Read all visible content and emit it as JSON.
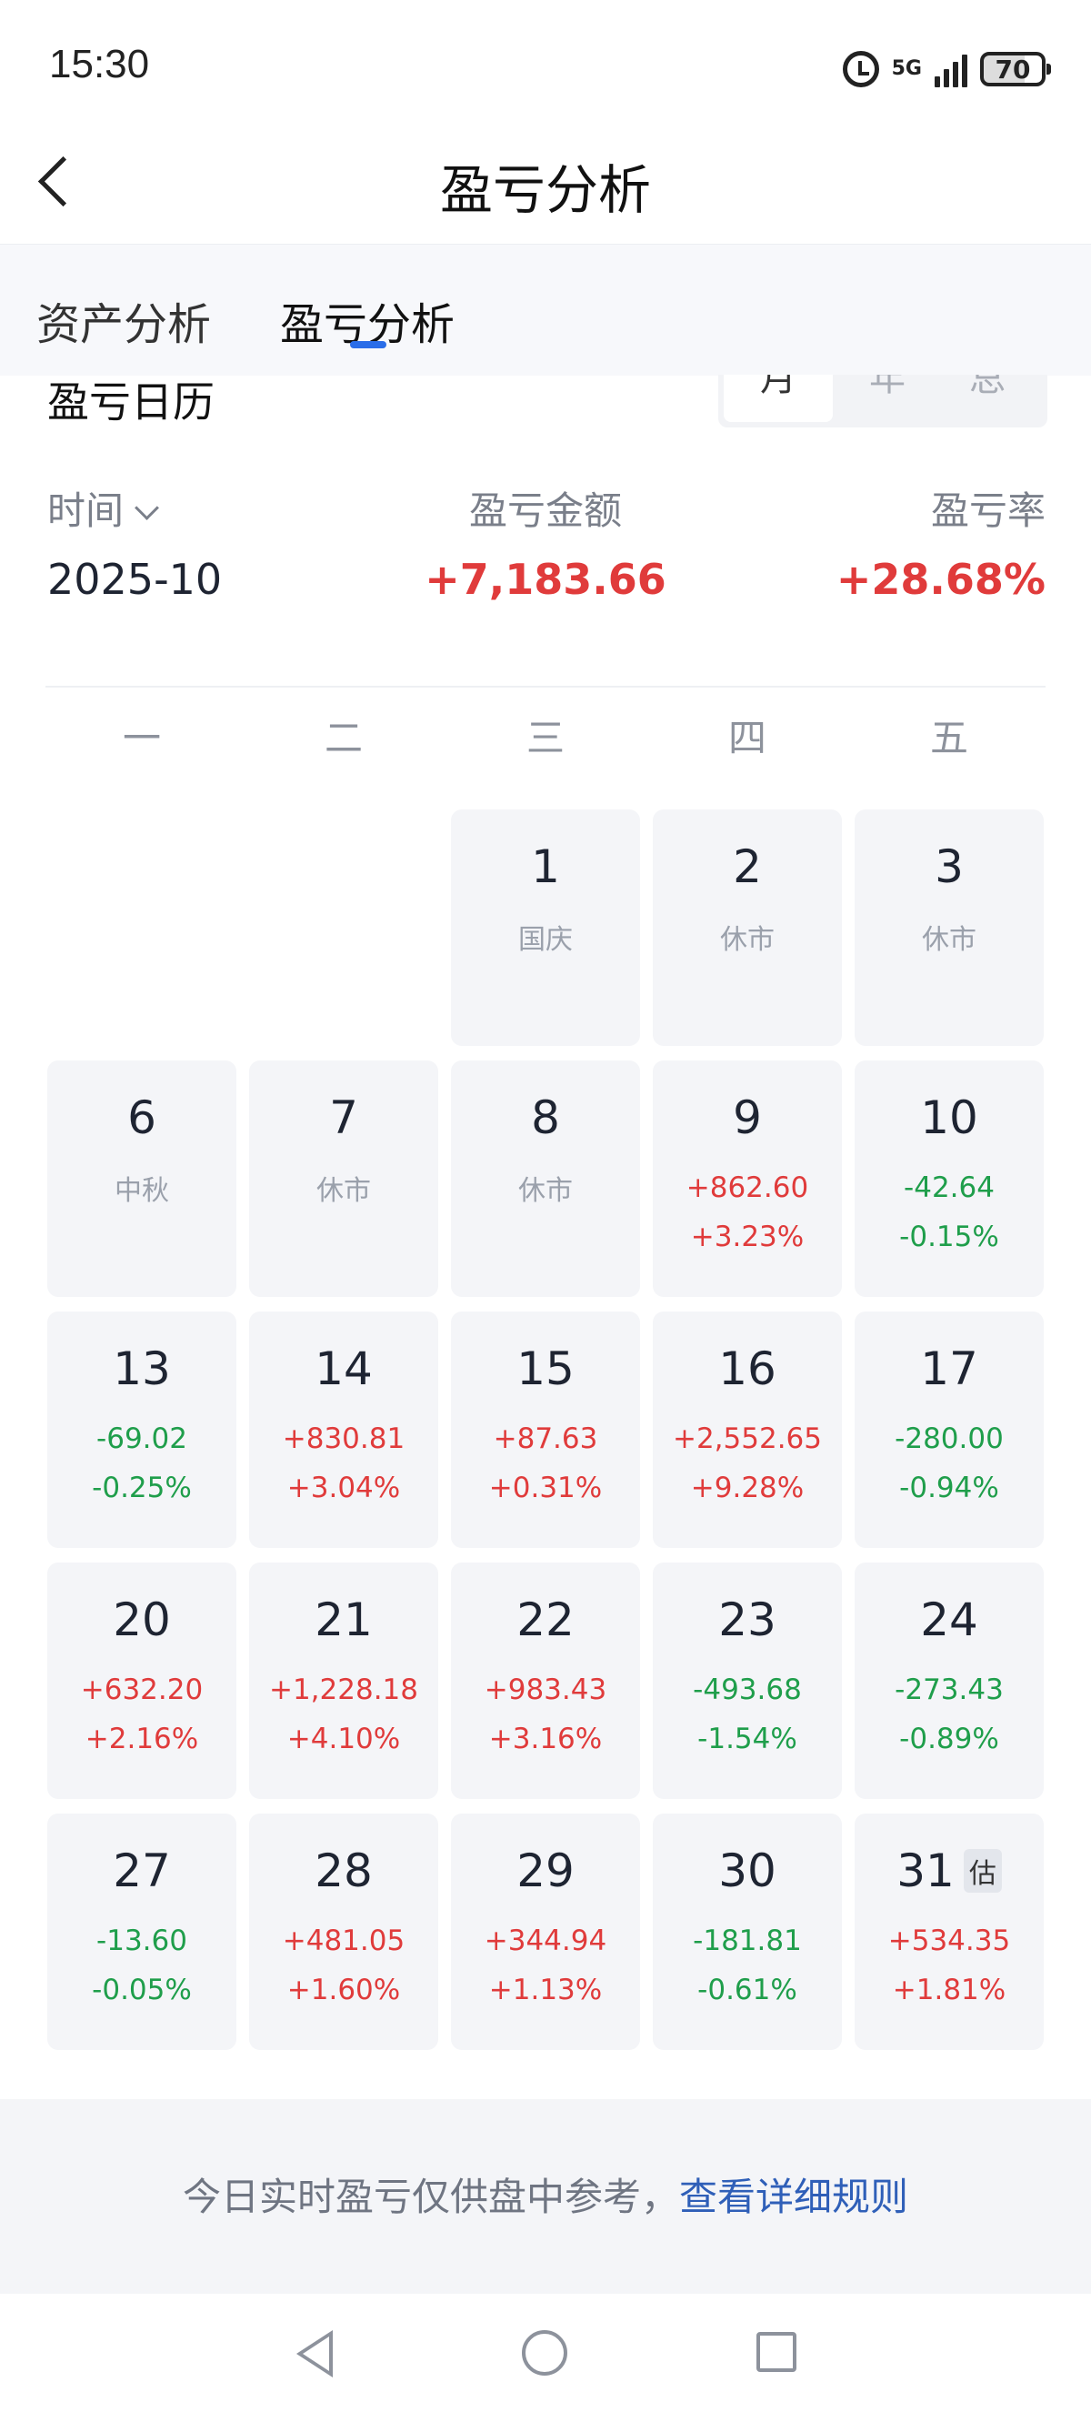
{
  "status_bar": {
    "time": "15:30",
    "network": "5G",
    "battery": "70"
  },
  "header": {
    "title": "盈亏分析"
  },
  "tabs": [
    {
      "label": "资产分析",
      "active": false
    },
    {
      "label": "盈亏分析",
      "active": true
    }
  ],
  "section": {
    "title": "盈亏日历",
    "periods": [
      {
        "label": "月",
        "active": true
      },
      {
        "label": "年",
        "active": false
      },
      {
        "label": "总",
        "active": false
      }
    ]
  },
  "summary": {
    "time_label": "时间",
    "amount_label": "盈亏金额",
    "rate_label": "盈亏率",
    "month": "2025-10",
    "amount": "+7,183.66",
    "rate": "+28.68%"
  },
  "weekdays": [
    "一",
    "二",
    "三",
    "四",
    "五"
  ],
  "calendar": [
    {
      "day": "1",
      "note": "国庆"
    },
    {
      "day": "2",
      "note": "休市"
    },
    {
      "day": "3",
      "note": "休市"
    },
    {
      "day": "6",
      "note": "中秋"
    },
    {
      "day": "7",
      "note": "休市"
    },
    {
      "day": "8",
      "note": "休市"
    },
    {
      "day": "9",
      "amount": "+862.60",
      "pct": "+3.23%"
    },
    {
      "day": "10",
      "amount": "-42.64",
      "pct": "-0.15%"
    },
    {
      "day": "13",
      "amount": "-69.02",
      "pct": "-0.25%"
    },
    {
      "day": "14",
      "amount": "+830.81",
      "pct": "+3.04%"
    },
    {
      "day": "15",
      "amount": "+87.63",
      "pct": "+0.31%"
    },
    {
      "day": "16",
      "amount": "+2,552.65",
      "pct": "+9.28%"
    },
    {
      "day": "17",
      "amount": "-280.00",
      "pct": "-0.94%"
    },
    {
      "day": "20",
      "amount": "+632.20",
      "pct": "+2.16%"
    },
    {
      "day": "21",
      "amount": "+1,228.18",
      "pct": "+4.10%"
    },
    {
      "day": "22",
      "amount": "+983.43",
      "pct": "+3.16%"
    },
    {
      "day": "23",
      "amount": "-493.68",
      "pct": "-1.54%"
    },
    {
      "day": "24",
      "amount": "-273.43",
      "pct": "-0.89%"
    },
    {
      "day": "27",
      "amount": "-13.60",
      "pct": "-0.05%"
    },
    {
      "day": "28",
      "amount": "+481.05",
      "pct": "+1.60%"
    },
    {
      "day": "29",
      "amount": "+344.94",
      "pct": "+1.13%"
    },
    {
      "day": "30",
      "amount": "-181.81",
      "pct": "-0.61%"
    },
    {
      "day": "31",
      "amount": "+534.35",
      "pct": "+1.81%",
      "badge": "估"
    }
  ],
  "footer": {
    "text": "今日实时盈亏仅供盘中参考，",
    "link": "查看详细规则"
  },
  "colors": {
    "gain": "#e03b3b",
    "loss": "#1f9e4b",
    "accent": "#2a6de8",
    "link": "#2f5fb8"
  }
}
